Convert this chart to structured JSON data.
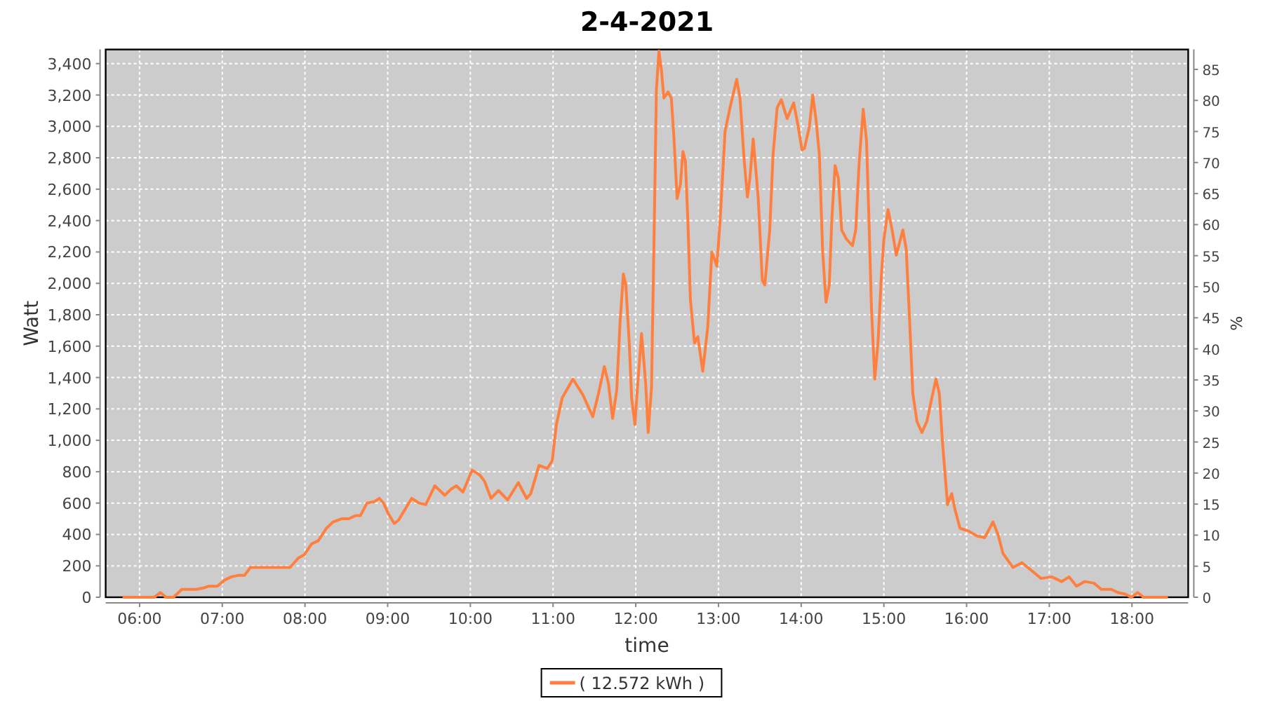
{
  "chart_data": {
    "type": "line",
    "title": "2-4-2021",
    "xlabel": "time",
    "ylabel": "Watt",
    "y2label": "%",
    "x": [
      5.81,
      6.18,
      6.25,
      6.32,
      6.41,
      6.51,
      6.69,
      6.78,
      6.83,
      6.94,
      7.03,
      7.11,
      7.2,
      7.27,
      7.34,
      7.48,
      7.82,
      7.92,
      7.99,
      8.08,
      8.16,
      8.26,
      8.34,
      8.44,
      8.53,
      8.61,
      8.67,
      8.75,
      8.84,
      8.9,
      8.95,
      9.01,
      9.08,
      9.13,
      9.21,
      9.29,
      9.38,
      9.46,
      9.57,
      9.69,
      9.77,
      9.83,
      9.91,
      10.02,
      10.11,
      10.17,
      10.25,
      10.34,
      10.45,
      10.58,
      10.68,
      10.73,
      10.83,
      10.93,
      10.99,
      11.04,
      11.11,
      11.24,
      11.36,
      11.48,
      11.55,
      11.62,
      11.67,
      11.72,
      11.77,
      11.81,
      11.85,
      11.88,
      11.92,
      11.95,
      11.99,
      12.02,
      12.07,
      12.12,
      12.15,
      12.19,
      12.22,
      12.25,
      12.28,
      12.31,
      12.34,
      12.39,
      12.43,
      12.46,
      12.5,
      12.54,
      12.57,
      12.6,
      12.63,
      12.66,
      12.71,
      12.75,
      12.81,
      12.87,
      12.92,
      12.98,
      13.02,
      13.08,
      13.14,
      13.22,
      13.26,
      13.31,
      13.35,
      13.38,
      13.42,
      13.48,
      13.53,
      13.56,
      13.62,
      13.66,
      13.71,
      13.76,
      13.83,
      13.91,
      13.96,
      14.01,
      14.04,
      14.1,
      14.14,
      14.18,
      14.22,
      14.26,
      14.3,
      14.34,
      14.37,
      14.41,
      14.45,
      14.49,
      14.55,
      14.62,
      14.66,
      14.7,
      14.75,
      14.79,
      14.82,
      14.85,
      14.89,
      14.93,
      14.97,
      15.0,
      15.05,
      15.1,
      15.15,
      15.23,
      15.27,
      15.31,
      15.35,
      15.4,
      15.46,
      15.52,
      15.58,
      15.63,
      15.67,
      15.71,
      15.77,
      15.82,
      15.86,
      15.92,
      16.03,
      16.13,
      16.22,
      16.32,
      16.38,
      16.44,
      16.56,
      16.67,
      16.81,
      16.9,
      17.03,
      17.15,
      17.24,
      17.33,
      17.43,
      17.54,
      17.63,
      17.75,
      17.83,
      17.92,
      17.99,
      18.07,
      18.14,
      18.42
    ],
    "series": [
      {
        "name": "( 12.572 kWh )",
        "color": "#ff7f3f",
        "values": [
          0,
          0,
          30,
          0,
          0,
          50,
          50,
          60,
          70,
          70,
          110,
          130,
          140,
          140,
          190,
          190,
          190,
          250,
          270,
          340,
          360,
          440,
          480,
          500,
          500,
          520,
          520,
          600,
          610,
          630,
          600,
          530,
          470,
          490,
          560,
          630,
          600,
          590,
          710,
          650,
          690,
          710,
          670,
          810,
          780,
          740,
          630,
          680,
          620,
          730,
          630,
          660,
          840,
          820,
          870,
          1100,
          1270,
          1390,
          1290,
          1150,
          1300,
          1470,
          1360,
          1140,
          1320,
          1750,
          2060,
          1990,
          1630,
          1270,
          1100,
          1330,
          1680,
          1360,
          1050,
          1330,
          2260,
          3240,
          3480,
          3360,
          3180,
          3220,
          3180,
          2940,
          2540,
          2630,
          2840,
          2780,
          2400,
          1900,
          1620,
          1660,
          1440,
          1720,
          2200,
          2110,
          2400,
          2970,
          3120,
          3300,
          3180,
          2790,
          2550,
          2670,
          2920,
          2550,
          2020,
          1990,
          2340,
          2820,
          3120,
          3170,
          3050,
          3150,
          3010,
          2850,
          2860,
          3000,
          3200,
          3040,
          2820,
          2200,
          1880,
          1990,
          2400,
          2750,
          2670,
          2340,
          2280,
          2240,
          2340,
          2760,
          3110,
          2910,
          2400,
          1840,
          1390,
          1630,
          2050,
          2280,
          2470,
          2340,
          2180,
          2340,
          2220,
          1780,
          1300,
          1120,
          1050,
          1120,
          1270,
          1390,
          1300,
          980,
          590,
          660,
          560,
          440,
          420,
          390,
          380,
          480,
          400,
          280,
          190,
          220,
          160,
          120,
          130,
          100,
          130,
          70,
          100,
          90,
          50,
          50,
          30,
          20,
          0,
          30,
          0,
          0
        ]
      }
    ],
    "xlim": [
      5.59,
      18.68
    ],
    "ylim": [
      0,
      3490
    ],
    "y2lim": [
      0,
      88.2
    ],
    "xticks": [
      {
        "value": 6,
        "label": "06:00"
      },
      {
        "value": 7,
        "label": "07:00"
      },
      {
        "value": 8,
        "label": "08:00"
      },
      {
        "value": 9,
        "label": "09:00"
      },
      {
        "value": 10,
        "label": "10:00"
      },
      {
        "value": 11,
        "label": "11:00"
      },
      {
        "value": 12,
        "label": "12:00"
      },
      {
        "value": 13,
        "label": "13:00"
      },
      {
        "value": 14,
        "label": "14:00"
      },
      {
        "value": 15,
        "label": "15:00"
      },
      {
        "value": 16,
        "label": "16:00"
      },
      {
        "value": 17,
        "label": "17:00"
      },
      {
        "value": 18,
        "label": "18:00"
      }
    ],
    "yticks": [
      0,
      200,
      400,
      600,
      800,
      {
        "value": 1000,
        "label": "1,000"
      },
      {
        "value": 1200,
        "label": "1,200"
      },
      {
        "value": 1400,
        "label": "1,400"
      },
      {
        "value": 1600,
        "label": "1,600"
      },
      {
        "value": 1800,
        "label": "1,800"
      },
      {
        "value": 2000,
        "label": "2,000"
      },
      {
        "value": 2200,
        "label": "2,200"
      },
      {
        "value": 2400,
        "label": "2,400"
      },
      {
        "value": 2600,
        "label": "2,600"
      },
      {
        "value": 2800,
        "label": "2,800"
      },
      {
        "value": 3000,
        "label": "3,000"
      },
      {
        "value": 3200,
        "label": "3,200"
      },
      {
        "value": 3400,
        "label": "3,400"
      }
    ],
    "y2ticks": [
      0,
      5,
      10,
      15,
      20,
      25,
      30,
      35,
      40,
      45,
      50,
      55,
      60,
      65,
      70,
      75,
      80,
      85
    ],
    "grid": true,
    "legend": "bottom"
  }
}
